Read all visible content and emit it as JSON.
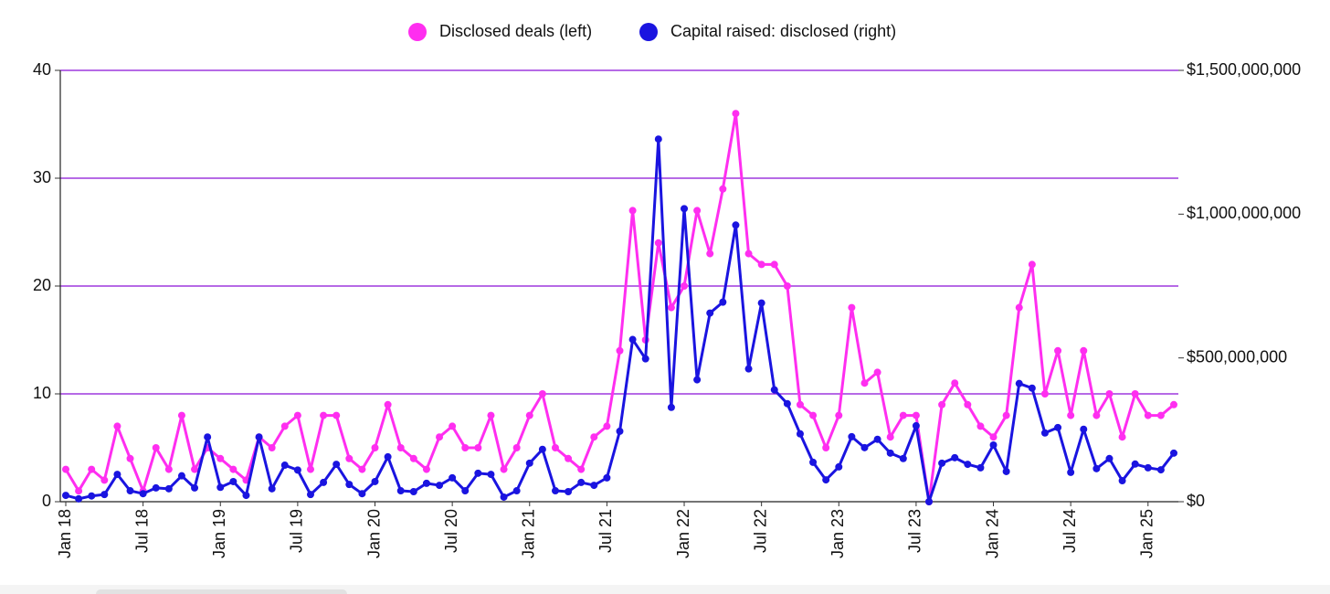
{
  "chart_data": {
    "type": "line",
    "legend": "top",
    "grid": true,
    "grid_color": "#8a12d6",
    "categories": [
      "Jan 18",
      null,
      null,
      null,
      null,
      null,
      "Jul 18",
      null,
      null,
      null,
      null,
      null,
      "Jan 19",
      null,
      null,
      null,
      null,
      null,
      "Jul 19",
      null,
      null,
      null,
      null,
      null,
      "Jan 20",
      null,
      null,
      null,
      null,
      null,
      "Jul 20",
      null,
      null,
      null,
      null,
      null,
      "Jan 21",
      null,
      null,
      null,
      null,
      null,
      "Jul 21",
      null,
      null,
      null,
      null,
      null,
      "Jan 22",
      null,
      null,
      null,
      null,
      null,
      "Jul 22",
      null,
      null,
      null,
      null,
      null,
      "Jan 23",
      null,
      null,
      null,
      null,
      null,
      "Jul 23",
      null,
      null,
      null,
      null,
      null,
      "Jan 24",
      null,
      null,
      null,
      null,
      null,
      "Jul 24",
      null,
      null,
      null,
      null,
      null,
      "Jan 25",
      null,
      null
    ],
    "ylim": [
      0,
      40
    ],
    "yticks": [
      0,
      10,
      20,
      30,
      40
    ],
    "y2lim": [
      0,
      1500000000
    ],
    "y2ticks": [
      {
        "value": 0,
        "label": "$0"
      },
      {
        "value": 500000000,
        "label": "$500,000,000"
      },
      {
        "value": 1000000000,
        "label": "$1,000,000,000"
      },
      {
        "value": 1500000000,
        "label": "$1,500,000,000"
      }
    ],
    "series": [
      {
        "name": "Disclosed deals (left)",
        "color": "#ff2ef0",
        "axis": "y",
        "values": [
          3,
          1,
          3,
          2,
          7,
          4,
          1,
          5,
          3,
          8,
          3,
          5,
          4,
          3,
          2,
          6,
          5,
          7,
          8,
          3,
          8,
          8,
          4,
          3,
          5,
          9,
          5,
          4,
          3,
          6,
          7,
          5,
          5,
          8,
          3,
          5,
          8,
          10,
          5,
          4,
          3,
          6,
          7,
          14,
          27,
          15,
          24,
          18,
          20,
          27,
          23,
          29,
          36,
          23,
          22,
          22,
          20,
          9,
          8,
          5,
          8,
          18,
          11,
          12,
          6,
          8,
          8,
          0,
          9,
          11,
          9,
          7,
          6,
          8,
          18,
          22,
          10,
          14,
          8,
          14,
          8,
          10,
          6,
          10,
          8,
          8,
          9
        ]
      },
      {
        "name": "Capital raised: disclosed (right)",
        "color": "#1a14e0",
        "axis": "y2",
        "values": [
          22000000,
          10000000,
          20000000,
          25000000,
          95000000,
          38000000,
          28000000,
          48000000,
          45000000,
          90000000,
          48000000,
          225000000,
          50000000,
          70000000,
          22000000,
          225000000,
          45000000,
          127000000,
          110000000,
          25000000,
          67000000,
          130000000,
          60000000,
          28000000,
          70000000,
          156000000,
          38000000,
          35000000,
          64000000,
          57000000,
          83000000,
          38000000,
          99000000,
          95000000,
          16000000,
          38000000,
          134000000,
          182000000,
          38000000,
          35000000,
          67000000,
          57000000,
          83000000,
          245000000,
          564000000,
          497000000,
          1261000000,
          328000000,
          1019000000,
          424000000,
          656000000,
          694000000,
          962000000,
          462000000,
          691000000,
          389000000,
          341000000,
          236000000,
          137000000,
          76000000,
          121000000,
          226000000,
          188000000,
          217000000,
          169000000,
          150000000,
          264000000,
          0,
          134000000,
          153000000,
          130000000,
          118000000,
          197000000,
          105000000,
          411000000,
          395000000,
          239000000,
          258000000,
          102000000,
          252000000,
          115000000,
          150000000,
          73000000,
          131000000,
          118000000,
          111000000,
          169000000
        ]
      }
    ]
  }
}
